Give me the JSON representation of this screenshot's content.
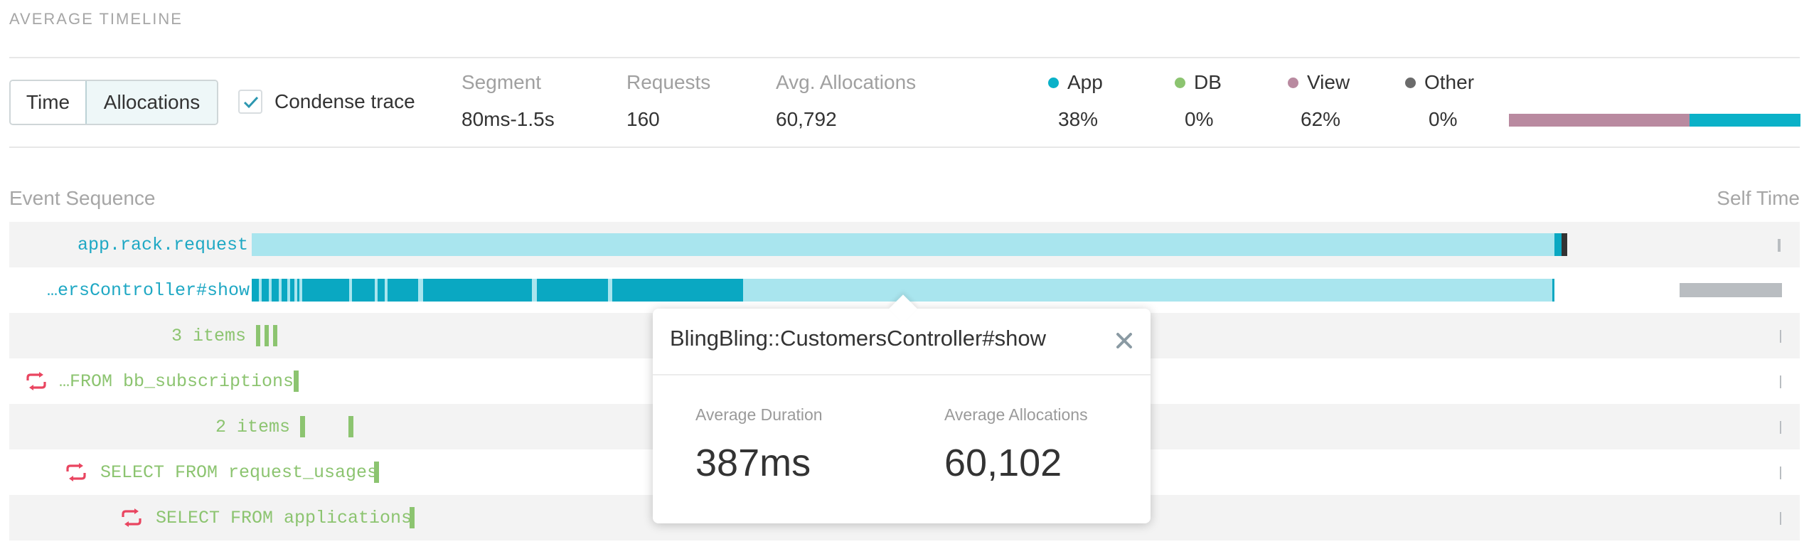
{
  "header": {
    "title": "AVERAGE TIMELINE"
  },
  "toggle": {
    "time_label": "Time",
    "allocations_label": "Allocations",
    "selected": "Allocations"
  },
  "condense": {
    "label": "Condense trace",
    "checked": true
  },
  "stats": {
    "segment": {
      "label": "Segment",
      "value": "80ms-1.5s"
    },
    "requests": {
      "label": "Requests",
      "value": "160"
    },
    "avg_allocations": {
      "label": "Avg. Allocations",
      "value": "60,792"
    }
  },
  "breakdown": [
    {
      "name": "App",
      "value": "38%",
      "color": "#0ab1c8"
    },
    {
      "name": "DB",
      "value": "0%",
      "color": "#8cc470"
    },
    {
      "name": "View",
      "value": "62%",
      "color": "#b98aa0"
    },
    {
      "name": "Other",
      "value": "0%",
      "color": "#6b6b6b"
    }
  ],
  "breakdown_bar": {
    "view_fraction": 0.62,
    "app_fraction": 0.38
  },
  "columns": {
    "event_sequence": "Event Sequence",
    "self_time": "Self Time"
  },
  "rows": [
    {
      "label": "app.rack.request",
      "kind": "app"
    },
    {
      "label": "…ersController#show",
      "kind": "app"
    },
    {
      "label": "3 items",
      "kind": "db"
    },
    {
      "label": "…FROM bb_subscriptions",
      "kind": "db",
      "loop": true
    },
    {
      "label": "2 items",
      "kind": "db"
    },
    {
      "label": "SELECT FROM request_usages",
      "kind": "db",
      "loop": true
    },
    {
      "label": "SELECT FROM applications",
      "kind": "db",
      "loop": true
    }
  ],
  "popover": {
    "title": "BlingBling::CustomersController#show",
    "duration_label": "Average Duration",
    "duration_value": "387ms",
    "allocations_label": "Average Allocations",
    "allocations_value": "60,102"
  },
  "colors": {
    "app_light": "#a9e5ee",
    "app_dark": "#0aa8c2",
    "db": "#8cc470",
    "loop": "#e94560",
    "view": "#b98aa0"
  }
}
